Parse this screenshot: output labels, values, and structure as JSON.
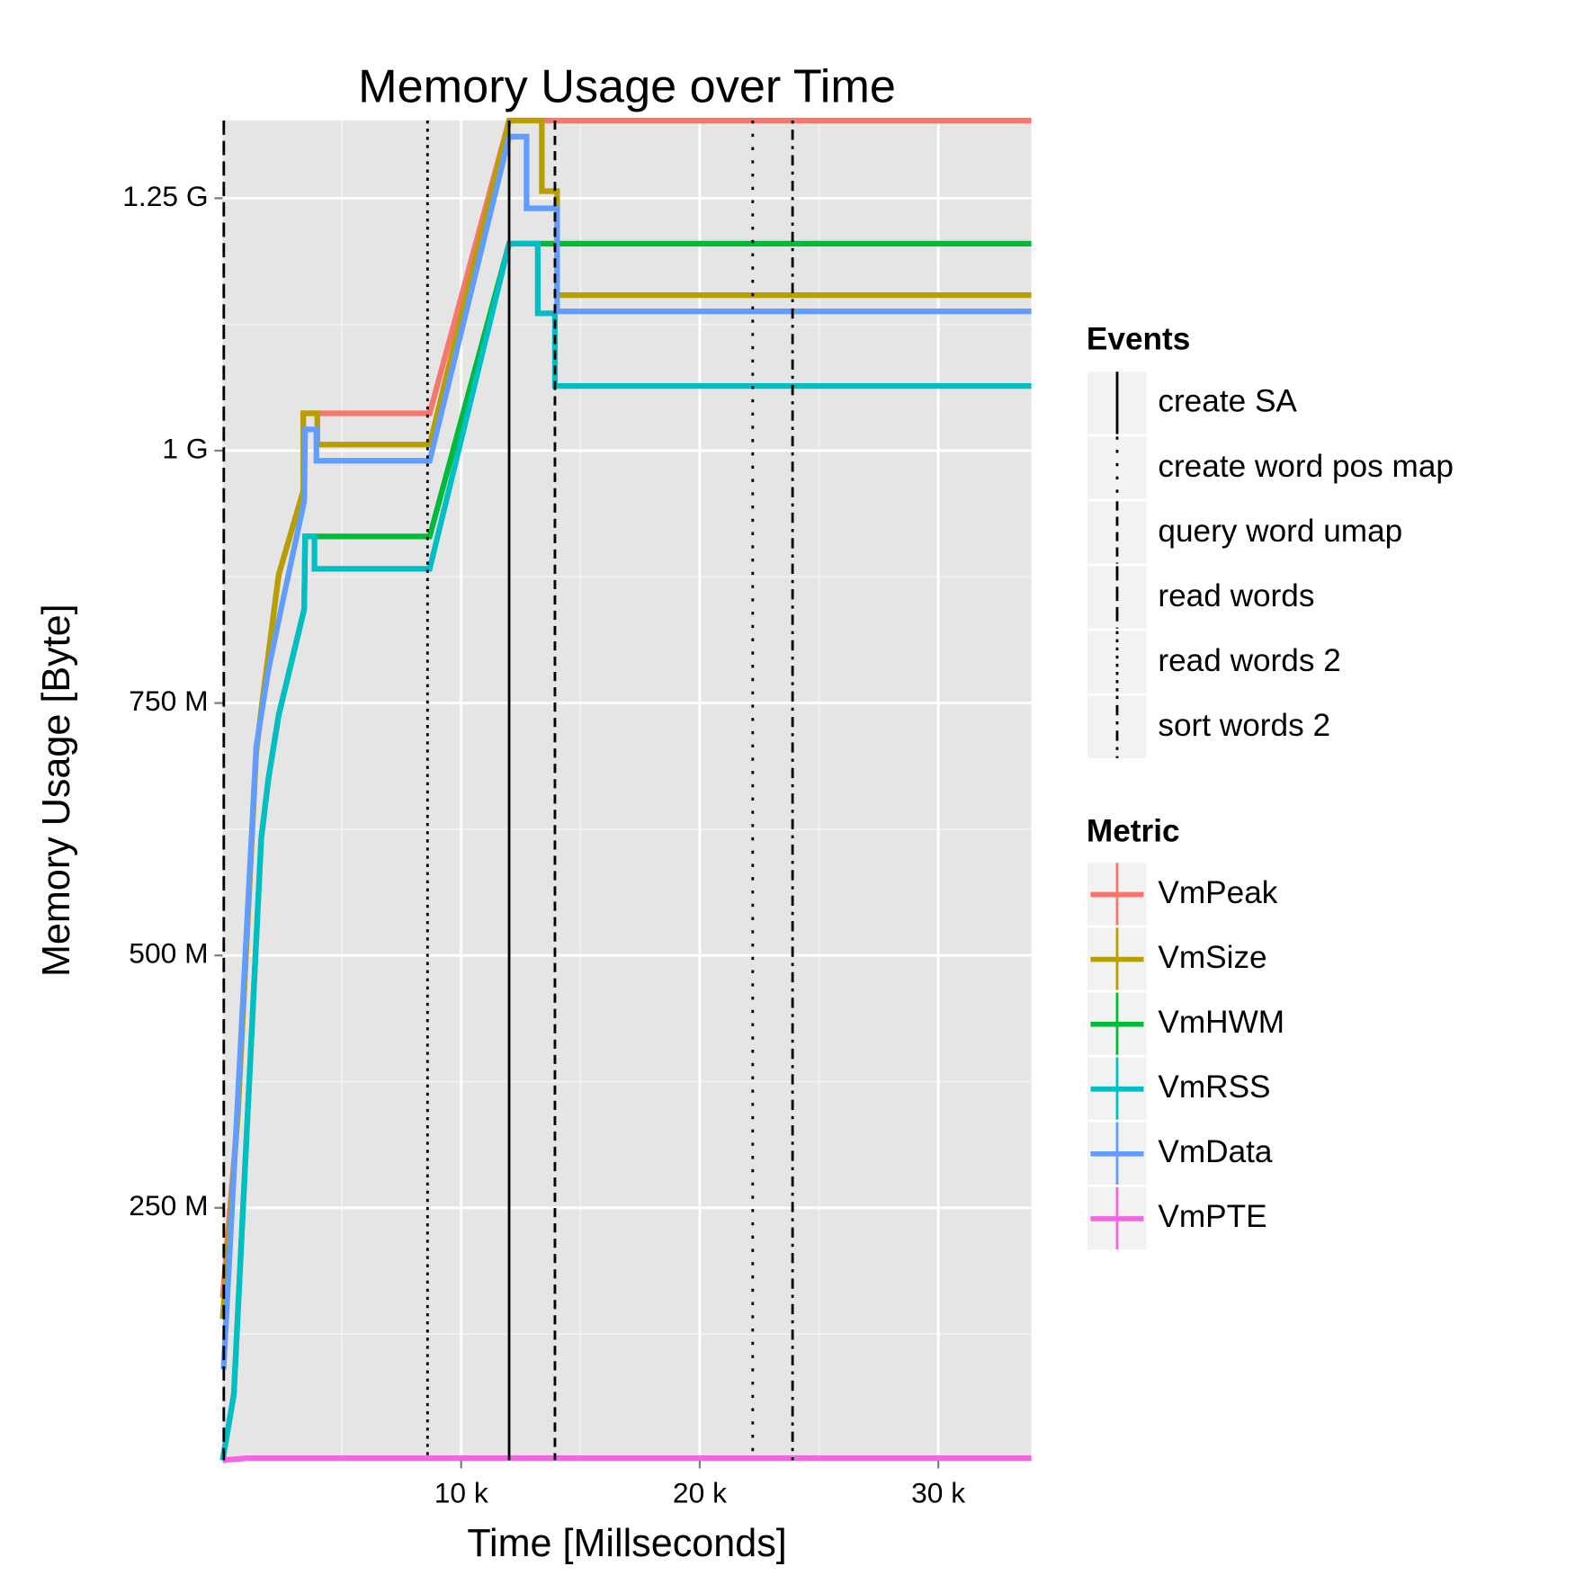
{
  "chart_data": {
    "type": "line",
    "title": "Memory Usage over Time",
    "x_label": "Time [Millseconds]",
    "y_label": "Memory Usage [Byte]",
    "xlim": [
      0,
      33900
    ],
    "ylim": [
      0,
      1327000000
    ],
    "xticks": [
      {
        "value": 10000,
        "label": "10 k"
      },
      {
        "value": 20000,
        "label": "20 k"
      },
      {
        "value": 30000,
        "label": "30 k"
      }
    ],
    "yticks": [
      {
        "value": 250000000,
        "label": "250 M"
      },
      {
        "value": 500000000,
        "label": "500 M"
      },
      {
        "value": 750000000,
        "label": "750 M"
      },
      {
        "value": 1000000000,
        "label": "1 G"
      },
      {
        "value": 1250000000,
        "label": "1.25 G"
      }
    ],
    "xminor": [
      5000,
      15000,
      25000
    ],
    "yminor": [
      125000000,
      375000000,
      625000000,
      875000000,
      1125000000
    ],
    "grid": true,
    "legend_title": "Metric",
    "series": [
      {
        "name": "VmPeak",
        "color": "#F8766D",
        "x": [
          0,
          640,
          1410,
          1710,
          1920,
          2350,
          3380,
          3380,
          8680,
          12010,
          33900
        ],
        "values": [
          161000000,
          343000000,
          702000000,
          760000000,
          798000000,
          877000000,
          960000000,
          1037000000,
          1037000000,
          1327000000,
          1327000000
        ]
      },
      {
        "name": "VmSize",
        "color": "#B79F00",
        "x": [
          0,
          640,
          1410,
          1710,
          1920,
          2350,
          3380,
          3380,
          3970,
          3970,
          8680,
          12010,
          13380,
          13380,
          14020,
          14020,
          33900
        ],
        "values": [
          140000000,
          343000000,
          702000000,
          760000000,
          798000000,
          877000000,
          960000000,
          1037000000,
          1037000000,
          1006000000,
          1006000000,
          1327000000,
          1327000000,
          1257000000,
          1257000000,
          1154000000,
          1154000000
        ]
      },
      {
        "name": "VmHWM",
        "color": "#00BA38",
        "x": [
          0,
          470,
          1620,
          1920,
          2350,
          3420,
          3460,
          8680,
          12010,
          33900
        ],
        "values": [
          0,
          65000000,
          616000000,
          675000000,
          738000000,
          843000000,
          915000000,
          915000000,
          1205000000,
          1205000000
        ]
      },
      {
        "name": "VmRSS",
        "color": "#00BFC4",
        "x": [
          0,
          470,
          1620,
          1920,
          2350,
          3420,
          3460,
          3850,
          3850,
          8680,
          12010,
          13210,
          13210,
          13930,
          13930,
          33900
        ],
        "values": [
          0,
          65000000,
          616000000,
          675000000,
          738000000,
          843000000,
          915000000,
          915000000,
          883000000,
          883000000,
          1205000000,
          1205000000,
          1136000000,
          1136000000,
          1064000000,
          1064000000
        ]
      },
      {
        "name": "VmData",
        "color": "#619CFF",
        "x": [
          40,
          1410,
          1920,
          2440,
          3420,
          3460,
          3930,
          3930,
          8680,
          12010,
          12740,
          12740,
          14020,
          14020,
          33900
        ],
        "values": [
          90000000,
          707000000,
          783000000,
          842000000,
          950000000,
          1021000000,
          1021000000,
          990000000,
          990000000,
          1311000000,
          1311000000,
          1240000000,
          1240000000,
          1138000000,
          1138000000
        ]
      },
      {
        "name": "VmPTE",
        "color": "#F564E3",
        "x": [
          0,
          1000,
          33900
        ],
        "values": [
          0,
          2000000,
          2000000
        ]
      }
    ],
    "events": {
      "title": "Events",
      "items": [
        {
          "name": "create SA",
          "x": 12010,
          "dash": "none"
        },
        {
          "name": "create word pos map",
          "x": 22220,
          "dash": "3 10"
        },
        {
          "name": "query word umap",
          "x": 13930,
          "dash": "9 6"
        },
        {
          "name": "read words",
          "x": 50,
          "dash": "14 6"
        },
        {
          "name": "read words 2",
          "x": 8590,
          "dash": "3 5"
        },
        {
          "name": "sort words 2",
          "x": 23890,
          "dash": "3 6 10 6"
        }
      ]
    }
  }
}
